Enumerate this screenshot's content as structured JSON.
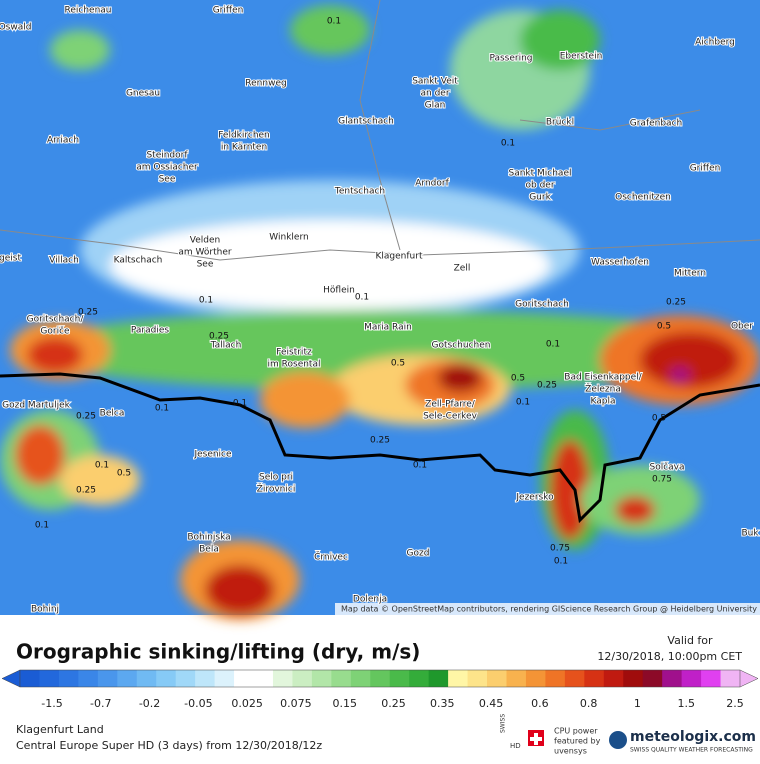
{
  "title": "Orographic sinking/lifting (dry, m/s)",
  "valid": {
    "label": "Valid for",
    "time": "12/30/2018, 10:00pm CET"
  },
  "legend": {
    "labels": [
      "-1.5",
      "-0.7",
      "-0.2",
      "-0.05",
      "0.025",
      "0.075",
      "0.15",
      "0.25",
      "0.35",
      "0.45",
      "0.6",
      "0.8",
      "1",
      "1.5",
      "2.5"
    ],
    "colors": [
      "#1a5cd4",
      "#2268dc",
      "#2d76e2",
      "#3a86e8",
      "#4a96ec",
      "#5ca8f0",
      "#70baf3",
      "#86caf6",
      "#a0d8f8",
      "#bee6fa",
      "#dcf2fc",
      "#ffffff",
      "#ffffff",
      "#e2f6dc",
      "#cbeec2",
      "#b2e6a8",
      "#98dc8e",
      "#7ed276",
      "#64c65e",
      "#4aba4a",
      "#34ac3a",
      "#1f982c",
      "#fff6a6",
      "#fde48a",
      "#fbce6e",
      "#f8b24e",
      "#f49436",
      "#ef7426",
      "#e6521c",
      "#d63214",
      "#c01a10",
      "#a00c0c",
      "#8c0a28",
      "#a0108c",
      "#c020c8",
      "#e040f0",
      "#f0b4f4"
    ]
  },
  "footer": {
    "location": "Klagenfurt Land",
    "model": "Central Europe Super HD (3 days) from 12/30/2018/12z",
    "swiss": "SWISS",
    "hd": "HD",
    "cpu": [
      "CPU power",
      "featured by",
      "uvensys"
    ],
    "brand": "meteologix.com",
    "tagline": "SWISS QUALITY WEATHER FORECASTING"
  },
  "attribution": "Map data © OpenStreetMap contributors, rendering GIScience Research Group @ Heidelberg University",
  "places": [
    [
      "Reichenau"
    ],
    [
      "Griffen"
    ],
    [
      "Oswald"
    ],
    [
      "Rennweg"
    ],
    [
      "Gnesau"
    ],
    [
      "Arriach"
    ],
    [
      "Feldkirchen",
      "in Kärnten"
    ],
    [
      "Steindorf",
      "am Ossiacher",
      "See"
    ],
    [
      "Glantschach"
    ],
    [
      "Sankt Veit",
      "an der",
      "Glan"
    ],
    [
      "Passering"
    ],
    [
      "Eberstein"
    ],
    [
      "Aichberg"
    ],
    [
      "Brückl"
    ],
    [
      "Grafenbach"
    ],
    [
      "Sankt Michael",
      "ob der",
      "Gurk"
    ],
    [
      "Tentschach"
    ],
    [
      "Arndorf"
    ],
    [
      "Oschenitzen"
    ],
    [
      "Griffen"
    ],
    [
      "Velden",
      "am Wörther",
      "See"
    ],
    [
      "Winklern"
    ],
    [
      "Villach"
    ],
    [
      "Kaltschach"
    ],
    [
      "geist"
    ],
    [
      "Klagenfurt"
    ],
    [
      "Zell"
    ],
    [
      "Wasserhofen"
    ],
    [
      "Mittern"
    ],
    [
      "Höflein"
    ],
    [
      "Goritschach"
    ],
    [
      "Goritschach/",
      "Goriče"
    ],
    [
      "Paradies"
    ],
    [
      "Maria Rain"
    ],
    [
      "Tallach"
    ],
    [
      "Feistritz",
      "im Rosental"
    ],
    [
      "Gotschuchen"
    ],
    [
      "Ober"
    ],
    [
      "Bad Eisenkappel/",
      "Železna",
      "Kapla"
    ],
    [
      "Gozd Martuljek"
    ],
    [
      "Belca"
    ],
    [
      "Zell-Pfarre/",
      "Sele-Cerkev"
    ],
    [
      "Jesenice"
    ],
    [
      "Selo pri",
      "Žirovnici"
    ],
    [
      "Solčava"
    ],
    [
      "Jezersko"
    ],
    [
      "Bohinjska",
      "Bela"
    ],
    [
      "Buk"
    ],
    [
      "Črnivec"
    ],
    [
      "Gozd"
    ],
    [
      "Dolenja"
    ],
    [
      "Bohinj"
    ]
  ],
  "contour_labels": [
    "0.1",
    "0.1",
    "0.1",
    "0.1",
    "0.25",
    "0.25",
    "0.5",
    "0.5",
    "0.25",
    "0.5",
    "0.25",
    "0.1",
    "0.1",
    "0.1",
    "0.1",
    "0.25",
    "0.25",
    "0.1",
    "0.5",
    "0.1",
    "0.5",
    "0.25",
    "0.1",
    "0.75",
    "0.75",
    "0.1"
  ]
}
